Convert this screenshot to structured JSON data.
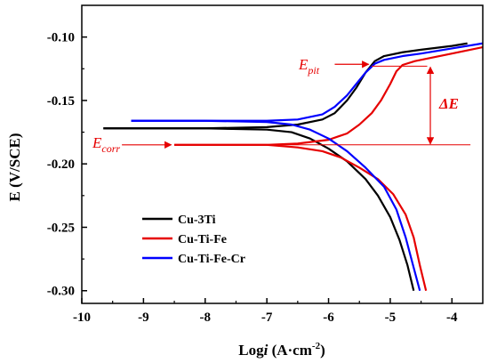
{
  "chart_data": {
    "type": "line",
    "title": "",
    "xlabel_prefix": "Log",
    "xlabel_var": "i",
    "xlabel_unit": " (A·cm",
    "xlabel_exp": "-2",
    "xlabel_close": ")",
    "ylabel": "E (V/SCE)",
    "xlim": [
      -10,
      -3.5
    ],
    "ylim": [
      -0.31,
      -0.075
    ],
    "xticks": [
      -10,
      -9,
      -8,
      -7,
      -6,
      -5,
      -4
    ],
    "yticks": [
      -0.3,
      -0.25,
      -0.2,
      -0.15,
      -0.1
    ],
    "xtick_labels": [
      "-10",
      "-9",
      "-8",
      "-7",
      "-6",
      "-5",
      "-4"
    ],
    "ytick_labels": [
      "-0.30",
      "-0.25",
      "-0.20",
      "-0.15",
      "-0.10"
    ],
    "grid": false,
    "legend_position": "bottom-left",
    "series": [
      {
        "name": "Cu-3Ti",
        "color": "#000000",
        "anodic": [
          [
            -9.65,
            -0.172
          ],
          [
            -8,
            -0.172
          ],
          [
            -7,
            -0.171
          ],
          [
            -6.5,
            -0.169
          ],
          [
            -6.1,
            -0.165
          ],
          [
            -5.9,
            -0.16
          ],
          [
            -5.7,
            -0.15
          ],
          [
            -5.55,
            -0.14
          ],
          [
            -5.4,
            -0.128
          ],
          [
            -5.25,
            -0.119
          ],
          [
            -5.1,
            -0.115
          ],
          [
            -4.8,
            -0.112
          ],
          [
            -4.5,
            -0.11
          ],
          [
            -4.0,
            -0.107
          ],
          [
            -3.75,
            -0.105
          ]
        ],
        "cathodic": [
          [
            -9.65,
            -0.172
          ],
          [
            -8,
            -0.172
          ],
          [
            -7,
            -0.173
          ],
          [
            -6.6,
            -0.175
          ],
          [
            -6.3,
            -0.18
          ],
          [
            -6.0,
            -0.188
          ],
          [
            -5.7,
            -0.198
          ],
          [
            -5.4,
            -0.212
          ],
          [
            -5.2,
            -0.225
          ],
          [
            -5.0,
            -0.242
          ],
          [
            -4.85,
            -0.26
          ],
          [
            -4.72,
            -0.28
          ],
          [
            -4.62,
            -0.3
          ]
        ]
      },
      {
        "name": "Cu-Ti-Fe",
        "color": "#e60000",
        "anodic": [
          [
            -8.5,
            -0.185
          ],
          [
            -7,
            -0.185
          ],
          [
            -6.5,
            -0.184
          ],
          [
            -6.0,
            -0.181
          ],
          [
            -5.7,
            -0.176
          ],
          [
            -5.5,
            -0.169
          ],
          [
            -5.3,
            -0.16
          ],
          [
            -5.15,
            -0.15
          ],
          [
            -5.0,
            -0.137
          ],
          [
            -4.9,
            -0.127
          ],
          [
            -4.8,
            -0.122
          ],
          [
            -4.6,
            -0.119
          ],
          [
            -4.3,
            -0.116
          ],
          [
            -4.0,
            -0.113
          ],
          [
            -3.5,
            -0.108
          ]
        ],
        "cathodic": [
          [
            -8.5,
            -0.185
          ],
          [
            -7,
            -0.185
          ],
          [
            -6.5,
            -0.187
          ],
          [
            -6.1,
            -0.19
          ],
          [
            -5.8,
            -0.195
          ],
          [
            -5.5,
            -0.203
          ],
          [
            -5.2,
            -0.212
          ],
          [
            -4.95,
            -0.224
          ],
          [
            -4.75,
            -0.24
          ],
          [
            -4.62,
            -0.258
          ],
          [
            -4.52,
            -0.28
          ],
          [
            -4.42,
            -0.3
          ]
        ]
      },
      {
        "name": "Cu-Ti-Fe-Cr",
        "color": "#0000ff",
        "anodic": [
          [
            -9.2,
            -0.166
          ],
          [
            -8,
            -0.166
          ],
          [
            -7,
            -0.166
          ],
          [
            -6.5,
            -0.165
          ],
          [
            -6.1,
            -0.161
          ],
          [
            -5.9,
            -0.155
          ],
          [
            -5.7,
            -0.146
          ],
          [
            -5.55,
            -0.137
          ],
          [
            -5.4,
            -0.128
          ],
          [
            -5.25,
            -0.121
          ],
          [
            -5.1,
            -0.118
          ],
          [
            -4.8,
            -0.115
          ],
          [
            -4.5,
            -0.113
          ],
          [
            -4.0,
            -0.109
          ],
          [
            -3.5,
            -0.105
          ]
        ],
        "cathodic": [
          [
            -9.2,
            -0.166
          ],
          [
            -8,
            -0.166
          ],
          [
            -7,
            -0.167
          ],
          [
            -6.6,
            -0.169
          ],
          [
            -6.3,
            -0.173
          ],
          [
            -6.0,
            -0.18
          ],
          [
            -5.7,
            -0.19
          ],
          [
            -5.4,
            -0.203
          ],
          [
            -5.1,
            -0.218
          ],
          [
            -4.9,
            -0.236
          ],
          [
            -4.75,
            -0.258
          ],
          [
            -4.63,
            -0.28
          ],
          [
            -4.52,
            -0.3
          ]
        ]
      }
    ],
    "annotations": {
      "epit_label": "E",
      "epit_sub": "pit",
      "ecorr_label": "E",
      "ecorr_sub": "corr",
      "delta_label": "ΔE",
      "color": "#e60000",
      "epit_level": -0.123,
      "ecorr_level": -0.185,
      "epit_line_x": [
        -5.3,
        -4.4
      ],
      "ecorr_line_x": [
        -8.5,
        -3.7
      ],
      "delta_x": -4.35,
      "epit_arrow_from_x": -5.9,
      "epit_arrow_to_x": -5.35,
      "ecorr_arrow_from_x": -9.35,
      "ecorr_arrow_to_x": -8.55
    }
  }
}
